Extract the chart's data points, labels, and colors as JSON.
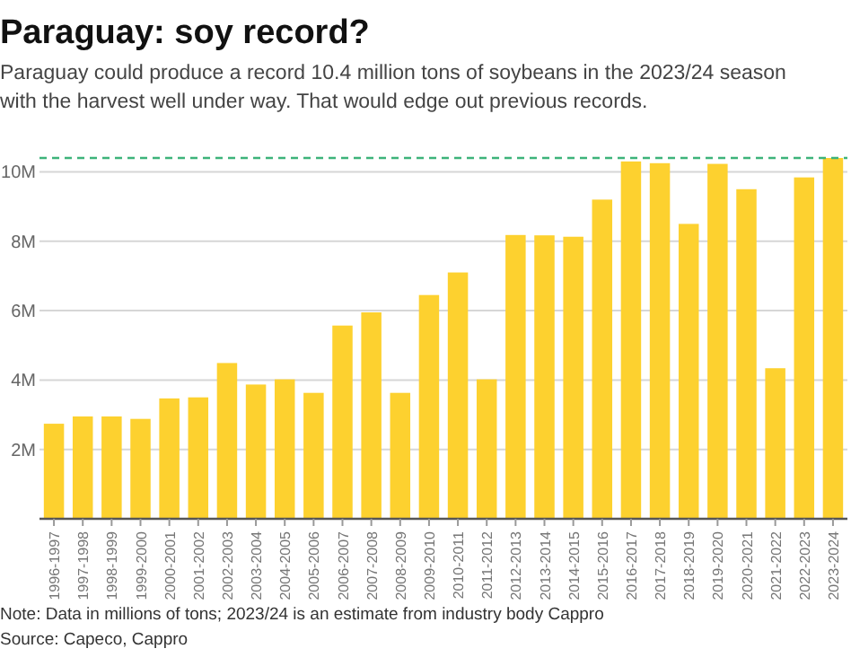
{
  "chart_data": {
    "type": "bar",
    "title": "Paraguay: soy record?",
    "subtitle": "Paraguay could produce a record 10.4 million tons of soybeans in the 2023/24 season with the harvest well under way. That would edge out previous records.",
    "categories": [
      "1996-1997",
      "1997-1998",
      "1998-1999",
      "1999-2000",
      "2000-2001",
      "2001-2002",
      "2002-2003",
      "2003-2004",
      "2004-2005",
      "2005-2006",
      "2006-2007",
      "2007-2008",
      "2008-2009",
      "2009-2010",
      "2010-2011",
      "2011-2012",
      "2012-2013",
      "2013-2014",
      "2014-2015",
      "2015-2016",
      "2016-2017",
      "2017-2018",
      "2018-2019",
      "2019-2020",
      "2020-2021",
      "2021-2022",
      "2022-2023",
      "2023-2024"
    ],
    "values": [
      2.74,
      2.95,
      2.95,
      2.88,
      3.47,
      3.5,
      4.49,
      3.87,
      4.02,
      3.63,
      5.57,
      5.95,
      3.63,
      6.45,
      7.1,
      4.02,
      8.18,
      8.17,
      8.13,
      9.2,
      10.3,
      10.25,
      8.5,
      10.23,
      9.5,
      4.34,
      9.84,
      10.4
    ],
    "color": "#fdd12f",
    "ylim": [
      0,
      10.4
    ],
    "yticks": [
      {
        "value": 0,
        "label": null
      },
      {
        "value": 2,
        "label": "2M"
      },
      {
        "value": 4,
        "label": "4M"
      },
      {
        "value": 6,
        "label": "6M"
      },
      {
        "value": 8,
        "label": "8M"
      },
      {
        "value": 10,
        "label": "10M"
      }
    ],
    "grid": "y",
    "ref_lines": [
      {
        "axis": "y",
        "value": 10.4,
        "color": "#3db37a",
        "line_style": "dashed"
      }
    ],
    "annotations": [
      "Note: Data in millions of tons; 2023/24 is an estimate from industry body Cappro",
      "Source: Capeco, Cappro"
    ]
  }
}
